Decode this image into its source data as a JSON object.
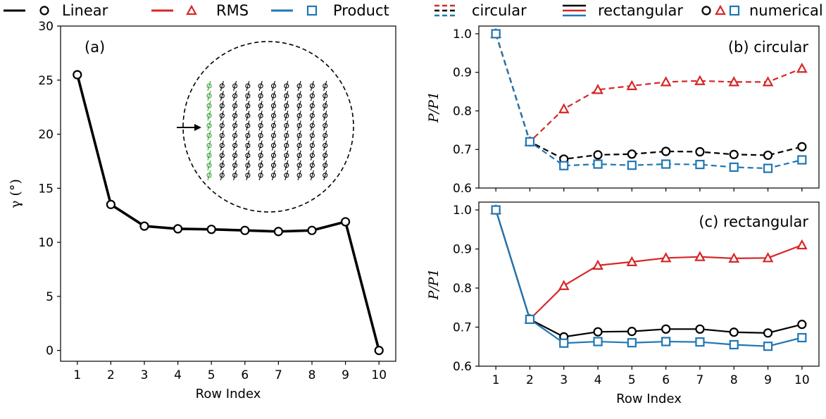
{
  "legend": {
    "linear": "Linear",
    "rms": "RMS",
    "product": "Product",
    "circular": "circular",
    "rectangular": "rectangular",
    "numerical": "numerical"
  },
  "colors": {
    "linear": "#000000",
    "rms": "#d62728",
    "product": "#1f77b4",
    "inset_green": "#2ca02c"
  },
  "chart_data": [
    {
      "type": "line",
      "panel_label": "(a)",
      "xlabel": "Row Index",
      "ylabel": "γ (°)",
      "xlim": [
        0.5,
        10.5
      ],
      "ylim": [
        -1,
        30
      ],
      "xticks": [
        1,
        2,
        3,
        4,
        5,
        6,
        7,
        8,
        9,
        10
      ],
      "yticks": [
        0,
        5,
        10,
        15,
        20,
        25,
        30
      ],
      "x": [
        1,
        2,
        3,
        4,
        5,
        6,
        7,
        8,
        9,
        10
      ],
      "series": [
        {
          "name": "Linear",
          "values": [
            25.5,
            13.5,
            11.5,
            11.25,
            11.2,
            11.1,
            11.0,
            11.1,
            11.9,
            0.0
          ]
        }
      ],
      "inset": {
        "rows": 10,
        "cols": 10,
        "description_colors": [
          "green first column",
          "black others"
        ]
      }
    },
    {
      "type": "line",
      "panel_label": "(b) circular",
      "xlabel": "",
      "ylabel": "P/P1",
      "xlim": [
        0.5,
        10.5
      ],
      "ylim": [
        0.6,
        1.02
      ],
      "yticks": [
        0.6,
        0.7,
        0.8,
        0.9,
        1.0
      ],
      "x": [
        1,
        2,
        3,
        4,
        5,
        6,
        7,
        8,
        9,
        10
      ],
      "line_style": "dashed",
      "series": [
        {
          "name": "RMS",
          "values": [
            1.0,
            0.72,
            0.805,
            0.855,
            0.865,
            0.875,
            0.878,
            0.875,
            0.875,
            0.91
          ]
        },
        {
          "name": "Linear",
          "values": [
            1.0,
            0.72,
            0.675,
            0.686,
            0.688,
            0.695,
            0.694,
            0.687,
            0.685,
            0.707
          ]
        },
        {
          "name": "Product",
          "values": [
            1.0,
            0.72,
            0.658,
            0.662,
            0.659,
            0.662,
            0.661,
            0.654,
            0.651,
            0.673
          ]
        }
      ]
    },
    {
      "type": "line",
      "panel_label": "(c) rectangular",
      "xlabel": "Row Index",
      "ylabel": "P/P1",
      "xlim": [
        0.5,
        10.5
      ],
      "ylim": [
        0.6,
        1.02
      ],
      "xticks": [
        1,
        2,
        3,
        4,
        5,
        6,
        7,
        8,
        9,
        10
      ],
      "yticks": [
        0.6,
        0.7,
        0.8,
        0.9,
        1.0
      ],
      "x": [
        1,
        2,
        3,
        4,
        5,
        6,
        7,
        8,
        9,
        10
      ],
      "line_style": "solid",
      "series": [
        {
          "name": "RMS",
          "values": [
            1.0,
            0.72,
            0.806,
            0.858,
            0.867,
            0.877,
            0.88,
            0.876,
            0.877,
            0.91
          ]
        },
        {
          "name": "Linear",
          "values": [
            1.0,
            0.72,
            0.675,
            0.688,
            0.689,
            0.695,
            0.695,
            0.687,
            0.685,
            0.707
          ]
        },
        {
          "name": "Product",
          "values": [
            1.0,
            0.72,
            0.659,
            0.663,
            0.66,
            0.663,
            0.662,
            0.655,
            0.651,
            0.673
          ]
        }
      ]
    }
  ]
}
